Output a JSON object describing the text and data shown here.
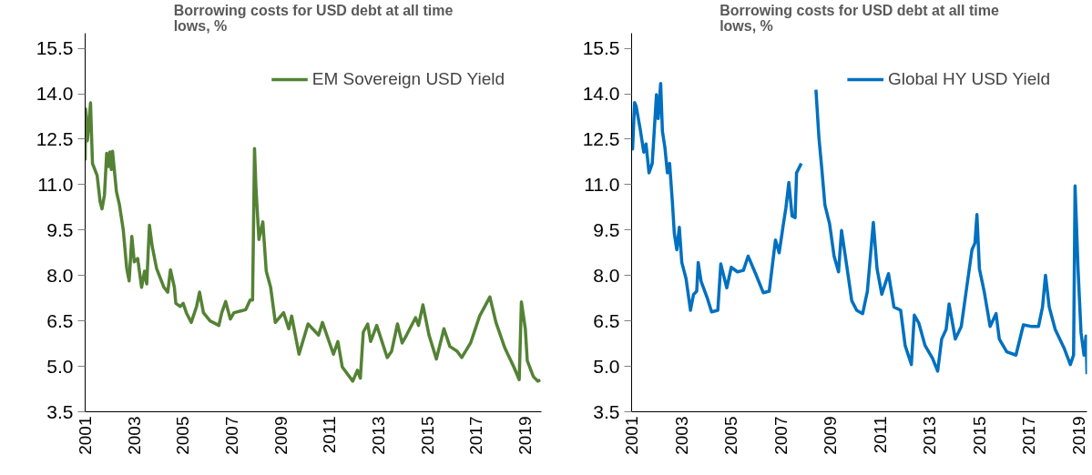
{
  "chart_data": [
    {
      "type": "line",
      "title": "Borrowing costs for USD debt at all time lows, %",
      "legend": "top right",
      "grid": false,
      "xlim": [
        2001,
        2019.67
      ],
      "xticks": [
        2001,
        2003,
        2005,
        2007,
        2009,
        2011,
        2013,
        2015,
        2017,
        2019
      ],
      "ylim": [
        3.5,
        16.0
      ],
      "yticks": [
        3.5,
        {
          "value": 5,
          "label": "5.0"
        },
        6.5,
        {
          "value": 8,
          "label": "8.0"
        },
        9.5,
        {
          "value": 11,
          "label": "11.0"
        },
        12.5,
        {
          "value": 14,
          "label": "14.0"
        },
        15.5
      ],
      "series": [
        {
          "name": "EM Sovereign USD Yield",
          "color": "#548235",
          "x": [
            2001.0,
            2001.02,
            2001.09,
            2001.15,
            2001.22,
            2001.25,
            2001.3,
            2001.49,
            2001.61,
            2001.69,
            2001.79,
            2001.88,
            2001.95,
            2002.01,
            2002.07,
            2002.12,
            2002.28,
            2002.4,
            2002.56,
            2002.7,
            2002.8,
            2002.91,
            2003.01,
            2003.15,
            2003.31,
            2003.43,
            2003.52,
            2003.63,
            2003.74,
            2003.92,
            2004.22,
            2004.38,
            2004.49,
            2004.65,
            2004.71,
            2004.89,
            2005.01,
            2005.14,
            2005.34,
            2005.56,
            2005.68,
            2005.84,
            2006.11,
            2006.47,
            2006.59,
            2006.75,
            2006.94,
            2007.09,
            2007.33,
            2007.57,
            2007.75,
            2007.85,
            2007.93,
            2007.99,
            2008.11,
            2008.27,
            2008.41,
            2008.59,
            2008.78,
            2009.12,
            2009.33,
            2009.45,
            2009.75,
            2010.12,
            2010.55,
            2010.71,
            2011.16,
            2011.34,
            2011.52,
            2011.95,
            2012.14,
            2012.26,
            2012.38,
            2012.56,
            2012.68,
            2012.93,
            2013.36,
            2013.54,
            2013.78,
            2013.97,
            2014.15,
            2014.52,
            2014.64,
            2014.82,
            2015.07,
            2015.37,
            2015.68,
            2015.92,
            2016.22,
            2016.41,
            2016.77,
            2017.14,
            2017.56,
            2017.81,
            2018.17,
            2018.54,
            2018.76,
            2018.85,
            2019.01,
            2019.09,
            2019.34,
            2019.52,
            2019.62
          ],
          "values": [
            11.8,
            13.5,
            12.45,
            13.0,
            13.7,
            12.9,
            11.7,
            11.3,
            10.45,
            10.2,
            10.66,
            12.03,
            11.6,
            12.08,
            11.5,
            12.1,
            10.77,
            10.35,
            9.5,
            8.24,
            7.82,
            9.29,
            8.45,
            8.56,
            7.61,
            8.14,
            7.72,
            9.66,
            8.98,
            8.24,
            7.61,
            7.45,
            8.19,
            7.61,
            7.08,
            6.98,
            7.08,
            6.77,
            6.45,
            6.98,
            7.45,
            6.77,
            6.5,
            6.35,
            6.77,
            7.14,
            6.56,
            6.77,
            6.82,
            6.87,
            7.19,
            7.19,
            12.19,
            10.87,
            9.19,
            9.77,
            8.14,
            7.61,
            6.45,
            6.77,
            6.24,
            6.66,
            5.4,
            6.4,
            6.03,
            6.45,
            5.4,
            5.82,
            4.98,
            4.51,
            4.87,
            4.61,
            6.13,
            6.4,
            5.82,
            6.35,
            5.29,
            5.5,
            6.4,
            5.77,
            6.03,
            6.61,
            6.35,
            7.03,
            6.03,
            5.24,
            6.24,
            5.66,
            5.5,
            5.29,
            5.77,
            6.66,
            7.29,
            6.45,
            5.61,
            4.98,
            4.56,
            7.13,
            6.24,
            5.19,
            4.66,
            4.51,
            4.55
          ]
        }
      ]
    },
    {
      "type": "line",
      "title": "Borrowing costs for USD debt at all time lows, %",
      "legend": "top right",
      "grid": false,
      "xlim": [
        2001,
        2019.33
      ],
      "xticks": [
        2001,
        2003,
        2005,
        2007,
        2009,
        2011,
        2013,
        2015,
        2017,
        2019
      ],
      "ylim": [
        3.5,
        16.0
      ],
      "yticks": [
        3.5,
        {
          "value": 5,
          "label": "5.0"
        },
        6.5,
        {
          "value": 8,
          "label": "8.0"
        },
        9.5,
        {
          "value": 11,
          "label": "11.0"
        },
        12.5,
        {
          "value": 14,
          "label": "14.0"
        },
        15.5
      ],
      "series": [
        {
          "name": "Global HY USD Yield",
          "color": "#0070c0",
          "x": [
            2001.0,
            2001.04,
            2001.12,
            2001.18,
            2001.34,
            2001.49,
            2001.58,
            2001.7,
            2001.83,
            2002.0,
            2002.07,
            2002.17,
            2002.24,
            2002.34,
            2002.44,
            2002.53,
            2002.64,
            2002.72,
            2002.82,
            2002.92,
            2003.02,
            2003.19,
            2003.37,
            2003.49,
            2003.62,
            2003.68,
            2003.8,
            2004.04,
            2004.22,
            2004.47,
            2004.59,
            2004.83,
            2005.01,
            2005.26,
            2005.5,
            2005.69,
            2005.99,
            2006.3,
            2006.54,
            2006.79,
            2006.94,
            2007.09,
            2007.21,
            2007.33,
            2007.46,
            2007.58,
            2007.64,
            2007.83,
            2007.88,
            2008.36,
            2008.42,
            2008.54,
            2008.66,
            2008.78,
            2008.97,
            2009.15,
            2009.33,
            2009.45,
            2009.64,
            2009.86,
            2010.06,
            2010.3,
            2010.49,
            2010.73,
            2010.88,
            2011.07,
            2011.34,
            2011.56,
            2011.83,
            2012.01,
            2012.26,
            2012.38,
            2012.56,
            2012.81,
            2013.11,
            2013.32,
            2013.48,
            2013.66,
            2013.78,
            2014.03,
            2014.27,
            2014.45,
            2014.7,
            2014.82,
            2014.9,
            2015.0,
            2015.19,
            2015.43,
            2015.67,
            2015.8,
            2016.1,
            2016.47,
            2016.77,
            2017.08,
            2017.38,
            2017.54,
            2017.66,
            2017.81,
            2018.05,
            2018.42,
            2018.66,
            2018.79,
            2018.85,
            2018.97,
            2019.09,
            2019.21,
            2019.29,
            2019.33
          ],
          "values": [
            12.65,
            12.18,
            13.71,
            13.6,
            12.86,
            12.07,
            12.34,
            11.39,
            11.7,
            13.97,
            13.18,
            14.34,
            12.76,
            12.23,
            11.39,
            11.7,
            10.44,
            9.38,
            8.85,
            9.59,
            8.43,
            7.9,
            6.85,
            7.37,
            7.48,
            8.43,
            7.8,
            7.27,
            6.8,
            6.85,
            8.38,
            7.59,
            8.27,
            8.12,
            8.17,
            8.64,
            8.06,
            7.43,
            7.48,
            9.17,
            8.75,
            9.59,
            10.23,
            11.07,
            9.96,
            9.91,
            11.39,
            11.7,
            null,
            null,
            14.13,
            12.55,
            11.49,
            10.33,
            9.7,
            8.64,
            8.12,
            9.49,
            8.43,
            7.17,
            6.85,
            6.74,
            7.48,
            9.75,
            8.22,
            7.38,
            8.06,
            6.96,
            6.85,
            5.69,
            5.06,
            6.69,
            6.43,
            5.69,
            5.27,
            4.84,
            5.9,
            6.22,
            7.06,
            5.9,
            6.32,
            7.38,
            8.85,
            9.07,
            10.01,
            8.22,
            7.48,
            6.32,
            6.74,
            5.9,
            5.48,
            5.37,
            6.37,
            6.32,
            6.32,
            6.96,
            8.01,
            6.96,
            6.22,
            5.58,
            5.06,
            5.37,
            10.96,
            8.22,
            6.11,
            5.37,
            6.0,
            4.74
          ]
        }
      ]
    }
  ]
}
